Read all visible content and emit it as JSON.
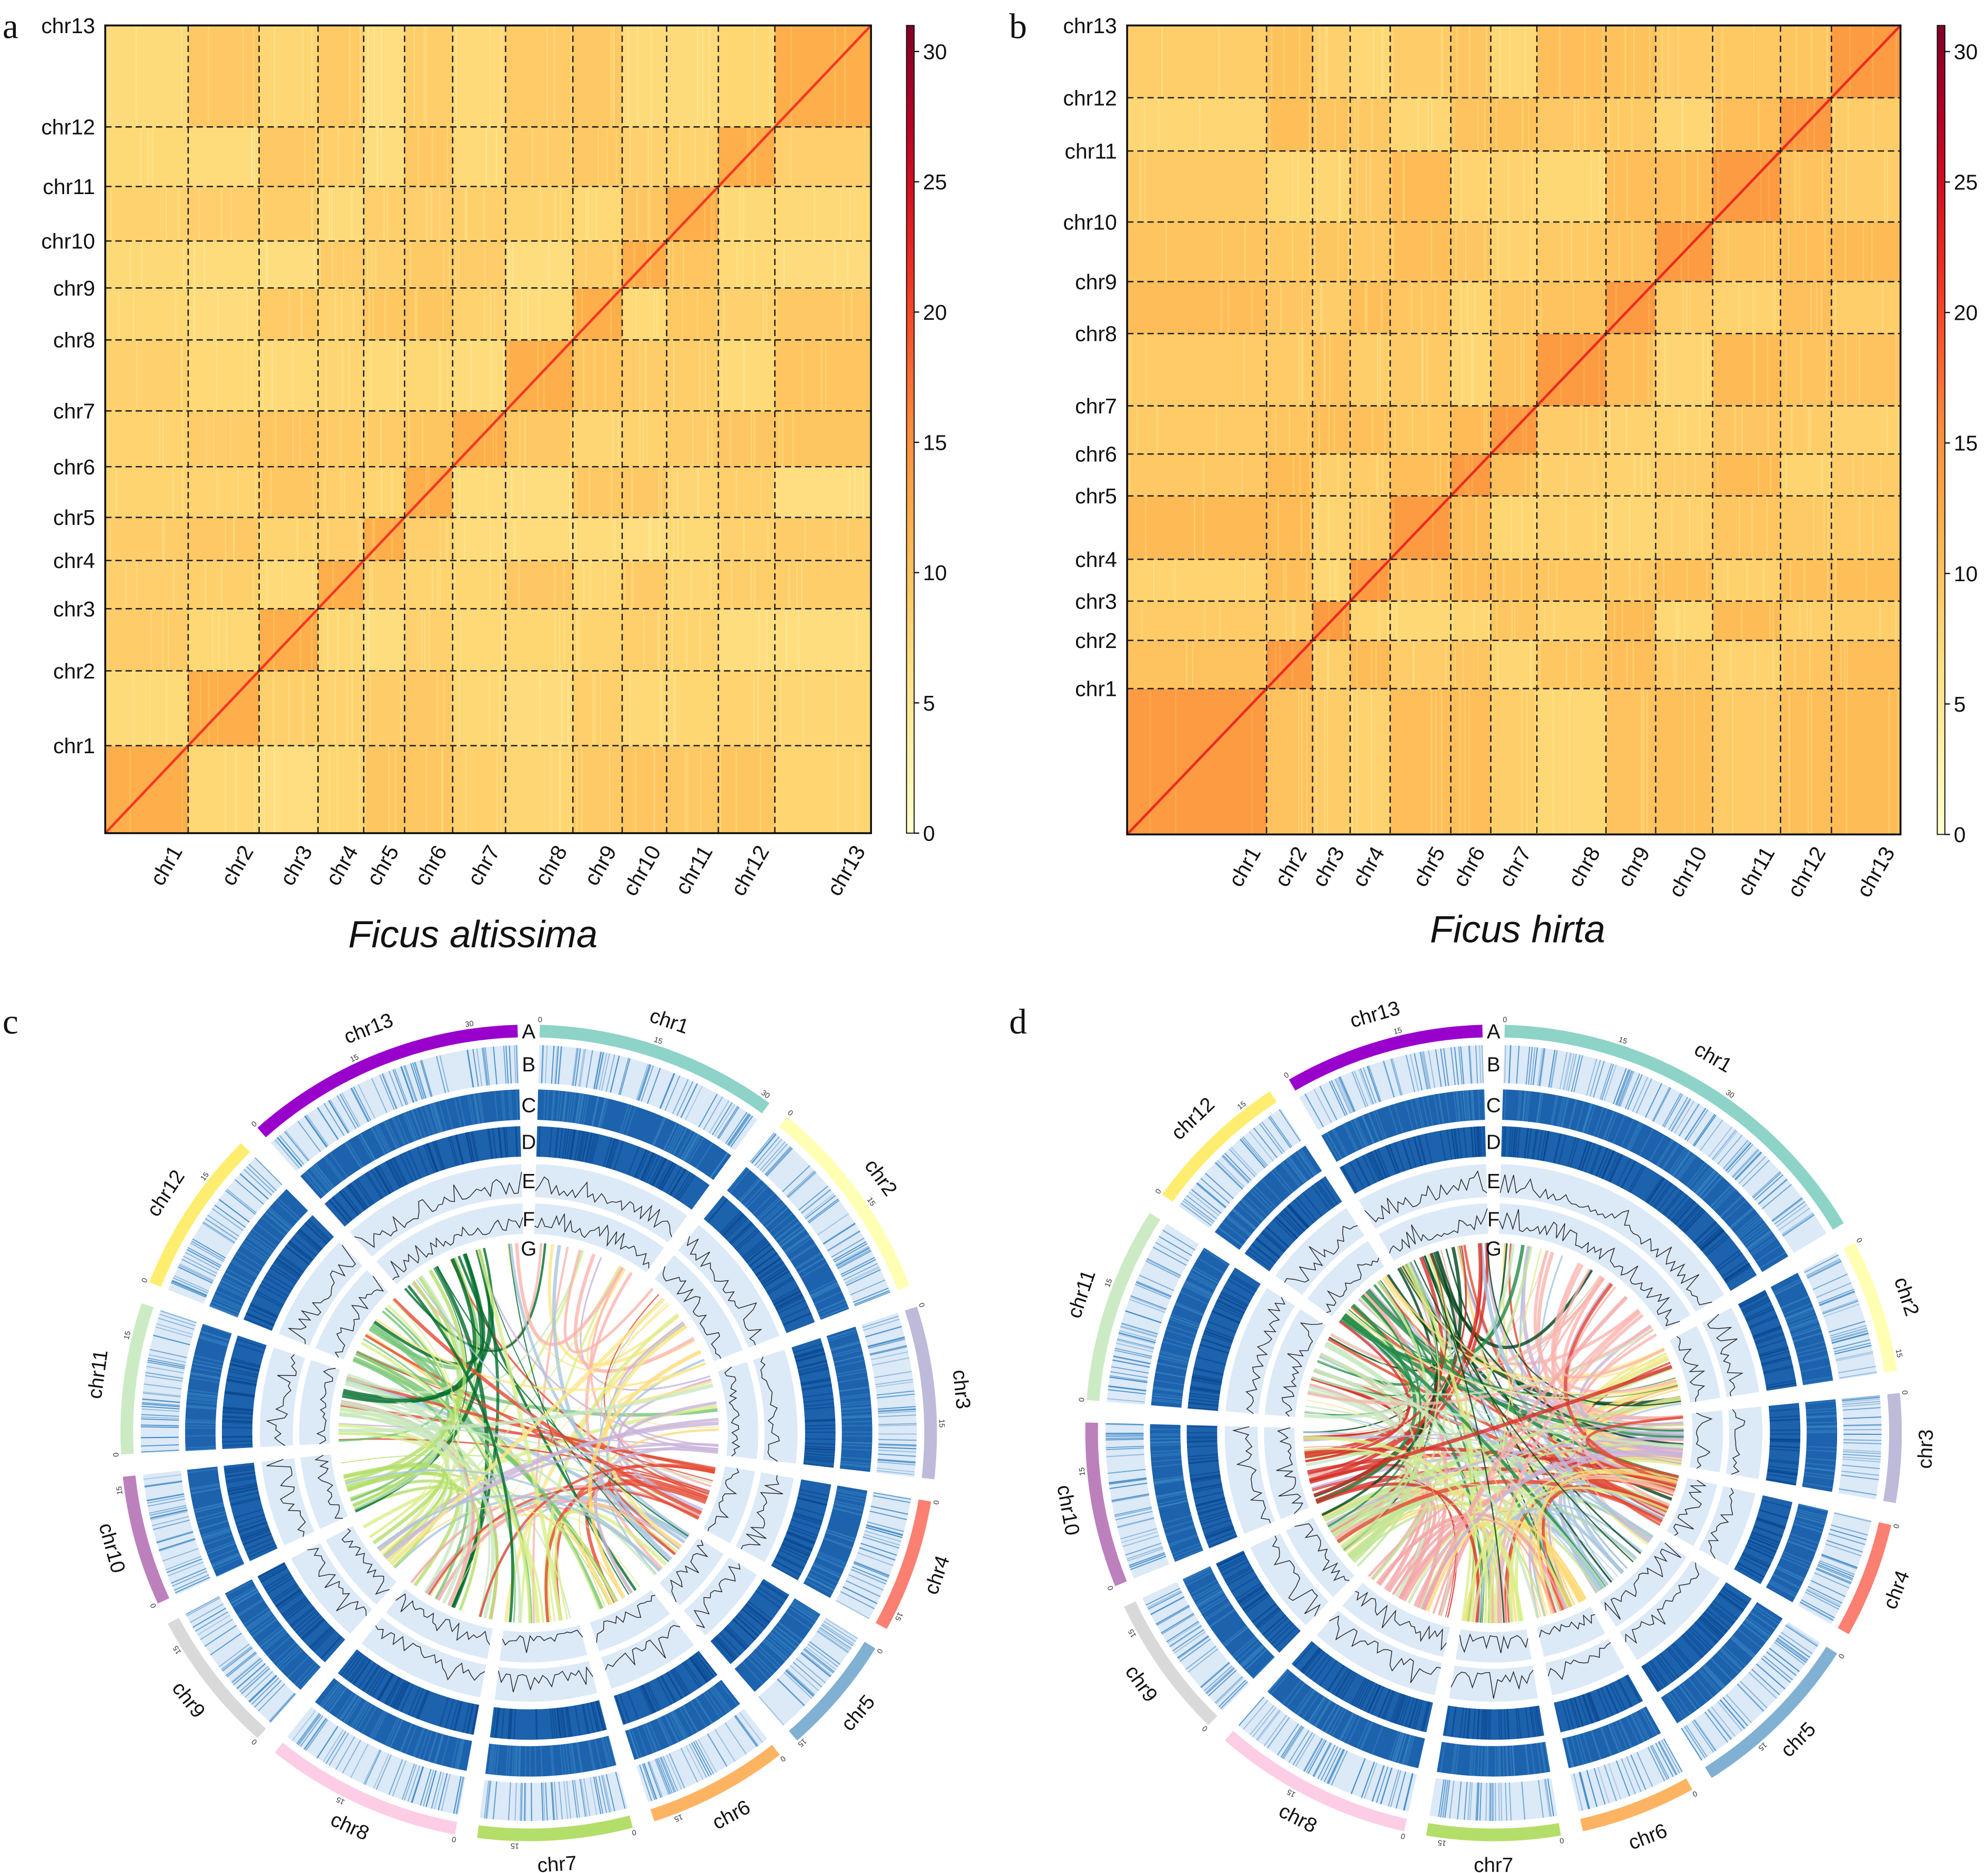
{
  "panels": {
    "a": {
      "letter": "a",
      "title": "Ficus altissima"
    },
    "b": {
      "letter": "b",
      "title": "Ficus hirta"
    },
    "c": {
      "letter": "c"
    },
    "d": {
      "letter": "d"
    }
  },
  "chart_data": [
    {
      "panel": "a",
      "type": "heatmap",
      "title": "Ficus altissima",
      "categories": [
        "chr1",
        "chr2",
        "chr3",
        "chr4",
        "chr5",
        "chr6",
        "chr7",
        "chr8",
        "chr9",
        "chr10",
        "chr11",
        "chr12",
        "chr13"
      ],
      "relative_lengths": [
        69,
        59,
        49,
        38,
        34,
        40,
        44,
        56,
        41,
        37,
        43,
        47,
        80
      ],
      "colorbar": {
        "colormap": "YlOrRd",
        "range": [
          0,
          31
        ],
        "ticks": [
          "0",
          "5",
          "10",
          "15",
          "20",
          "25",
          "30"
        ]
      },
      "intra_value": 12,
      "inter_value": 8,
      "diagonal_value": 21,
      "gridlines": "dashed chromosome boundaries"
    },
    {
      "panel": "b",
      "type": "heatmap",
      "title": "Ficus hirta",
      "categories": [
        "chr1",
        "chr2",
        "chr3",
        "chr4",
        "chr5",
        "chr6",
        "chr7",
        "chr8",
        "chr9",
        "chr10",
        "chr11",
        "chr12",
        "chr13"
      ],
      "relative_lengths": [
        115,
        38,
        31,
        33,
        50,
        33,
        38,
        57,
        41,
        47,
        56,
        42,
        57
      ],
      "colorbar": {
        "colormap": "YlOrRd",
        "range": [
          0,
          31
        ],
        "ticks": [
          "0",
          "5",
          "10",
          "15",
          "20",
          "25",
          "30"
        ]
      },
      "intra_value": 14,
      "inter_value": 9,
      "diagonal_value": 22,
      "gridlines": "dashed chromosome boundaries"
    },
    {
      "panel": "c",
      "type": "circos",
      "chromosomes": [
        "chr1",
        "chr2",
        "chr3",
        "chr4",
        "chr5",
        "chr6",
        "chr7",
        "chr8",
        "chr9",
        "chr10",
        "chr11",
        "chr12",
        "chr13"
      ],
      "relative_lengths": [
        69,
        59,
        49,
        38,
        34,
        40,
        44,
        56,
        41,
        37,
        43,
        47,
        80
      ],
      "tracks": [
        "A",
        "B",
        "C",
        "D",
        "E",
        "F",
        "G"
      ],
      "tick_labels": [
        "0",
        "15",
        "30"
      ]
    },
    {
      "panel": "d",
      "type": "circos",
      "chromosomes": [
        "chr1",
        "chr2",
        "chr3",
        "chr4",
        "chr5",
        "chr6",
        "chr7",
        "chr8",
        "chr9",
        "chr10",
        "chr11",
        "chr12",
        "chr13"
      ],
      "relative_lengths": [
        115,
        38,
        31,
        33,
        50,
        33,
        38,
        57,
        41,
        47,
        56,
        42,
        57
      ],
      "tracks": [
        "A",
        "B",
        "C",
        "D",
        "E",
        "F",
        "G"
      ],
      "tick_labels": [
        "0",
        "15",
        "30"
      ]
    }
  ],
  "colors": {
    "chromosomes": [
      "#8dd3c7",
      "#ffffb3",
      "#bebada",
      "#fb8072",
      "#80b1d3",
      "#fdb462",
      "#b3de69",
      "#fccde5",
      "#d9d9d9",
      "#bc80bd",
      "#ccebc5",
      "#ffed6f",
      "#9900cc"
    ],
    "link_colors_c": [
      "#fbb4ae",
      "#fde68a",
      "#c9b3d9",
      "#e34a33",
      "#a6c6e0",
      "#fed976",
      "#d9ef8b",
      "#f4a6a6",
      "#d9ef8b",
      "#b3de69",
      "#c7e9c0",
      "#74c476",
      "#006d2c"
    ],
    "link_colors_d": [
      "#fbb4ae",
      "#fde68a",
      "#c9b3d9",
      "#e34a33",
      "#a6c6e0",
      "#fed976",
      "#d9ef8b",
      "#f4a6a6",
      "#c2e699",
      "#d73027",
      "#c7e9c0",
      "#238b45",
      "#00441b"
    ],
    "track_bg": "#dce9f7",
    "track_dark": "#1c62ad",
    "track_mid": "#3b87c4"
  }
}
